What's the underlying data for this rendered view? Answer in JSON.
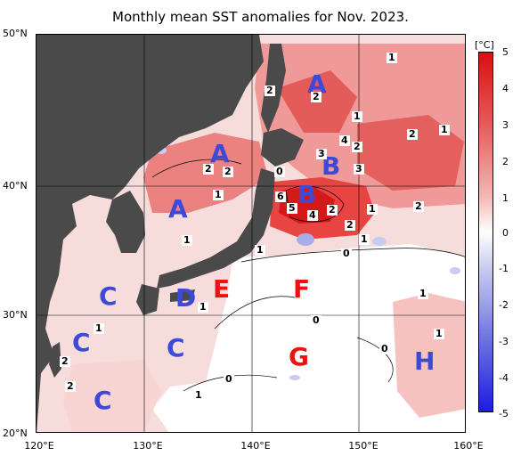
{
  "title": "Monthly mean SST anomalies for Nov. 2023.",
  "lat_labels": [
    "50°N",
    "40°N",
    "30°N",
    "20°N"
  ],
  "lon_labels": [
    "120°E",
    "130°E",
    "140°E",
    "150°E",
    "160°E"
  ],
  "colorbar": {
    "unit": "[°C]",
    "ticks": [
      "5",
      "4",
      "3",
      "2",
      "1",
      "0",
      "-1",
      "-2",
      "-3",
      "-4",
      "-5"
    ]
  },
  "regions": {
    "a1": "A",
    "a2": "A",
    "a3": "A",
    "b1": "B",
    "b2": "B",
    "c1": "C",
    "c2": "C",
    "c3": "C",
    "c4": "C",
    "d": "D",
    "e": "E",
    "f": "F",
    "g": "G",
    "h": "H"
  },
  "contour_labels": {
    "n1": "1",
    "n2": "2",
    "n3": "2",
    "n4": "1",
    "n5": "2",
    "n6": "2",
    "n7": "2",
    "n8": "0",
    "n9": "3",
    "n10": "4",
    "n11": "2",
    "n12": "3",
    "n13": "1",
    "n14": "6",
    "n15": "5",
    "n16": "4",
    "n17": "2",
    "n18": "1",
    "n19": "2",
    "n20": "1",
    "n21": "2",
    "n22": "1",
    "n23": "1",
    "n24": "0",
    "n25": "1",
    "n26": "1",
    "n27": "0",
    "n28": "1",
    "n29": "0",
    "n30": "1",
    "n31": "1",
    "n32": "0",
    "n33": "2",
    "n34": "2",
    "n35": "1"
  },
  "colors": {
    "land": "#4a4a4a",
    "positive_strong": "#d91616",
    "positive_mid": "#ec7b79",
    "positive_weak": "#f6c2c0",
    "neutral": "#ffffff",
    "negative_weak": "#c9ccf0",
    "negative_strong": "#2626e0"
  }
}
